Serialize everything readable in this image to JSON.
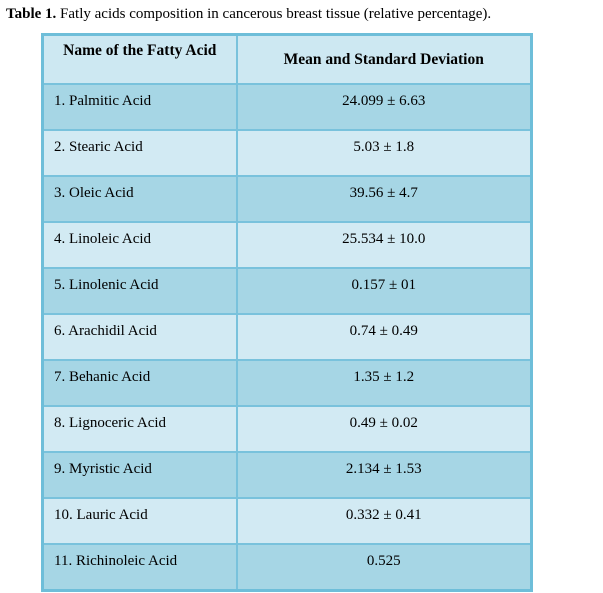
{
  "title": {
    "label": "Table 1.",
    "text": " Fatly acids composition in cancerous breast tissue (relative percentage)."
  },
  "table": {
    "headers": [
      "Name of the Fatty Acid",
      "Mean and Standard Deviation"
    ],
    "rows": [
      {
        "name": "1. Palmitic Acid",
        "value": "24.099 ± 6.63"
      },
      {
        "name": "2. Stearic Acid",
        "value": "5.03 ± 1.8"
      },
      {
        "name": "3. Oleic Acid",
        "value": "39.56 ± 4.7"
      },
      {
        "name": "4. Linoleic Acid",
        "value": "25.534 ± 10.0"
      },
      {
        "name": "5. Linolenic Acid",
        "value": "0.157 ± 01"
      },
      {
        "name": "6. Arachidil Acid",
        "value": "0.74 ± 0.49"
      },
      {
        "name": "7. Behanic Acid",
        "value": "1.35 ± 1.2"
      },
      {
        "name": "8. Lignoceric Acid",
        "value": "0.49 ± 0.02"
      },
      {
        "name": "9. Myristic Acid",
        "value": "2.134 ± 1.53"
      },
      {
        "name": "10. Lauric Acid",
        "value": "0.332 ± 0.41"
      },
      {
        "name": "11. Richinoleic Acid",
        "value": "0.525"
      }
    ]
  },
  "colors": {
    "border": "#6ebed9",
    "row_dark": "#a6d6e5",
    "row_light": "#d2eaf3",
    "header_bg": "#cde8f2",
    "text": "#000000",
    "page_bg": "#ffffff"
  }
}
